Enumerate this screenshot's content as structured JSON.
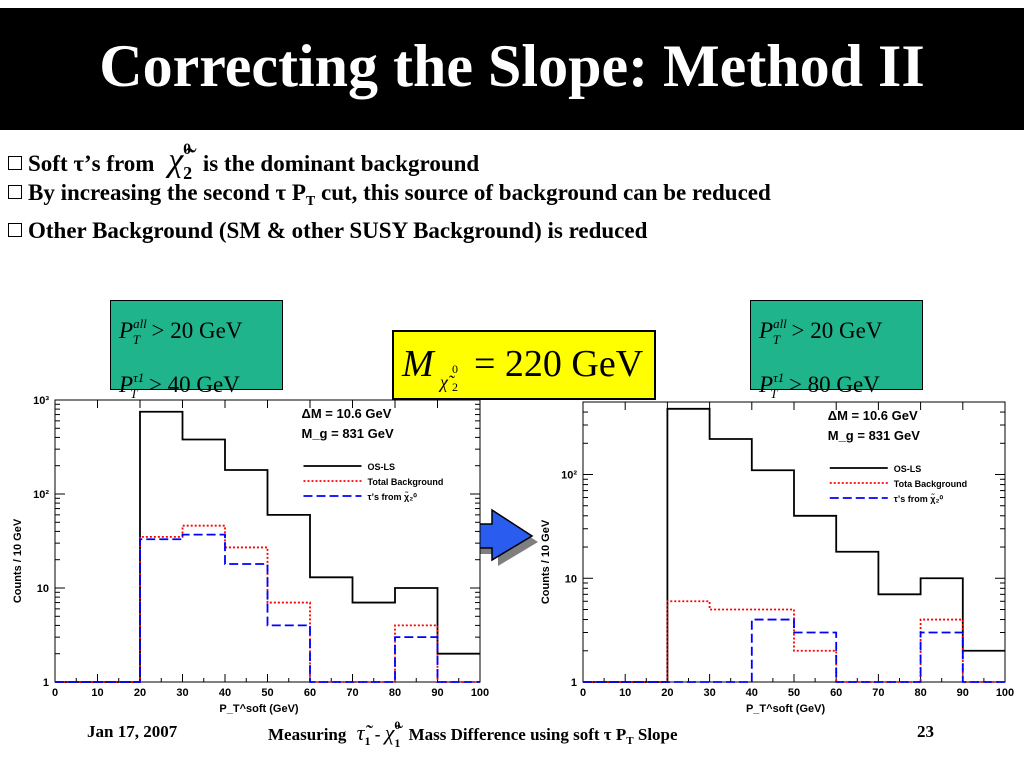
{
  "slide": {
    "title": "Correcting the Slope: Method II",
    "bullets": [
      {
        "pre": "Soft τ’s from",
        "sym": "χ̃",
        "sup": "0",
        "sub": "2",
        "post": "is the dominant background"
      },
      {
        "pre": "By increasing the second τ P",
        "sub": "T",
        "post": "cut, this source of background can be reduced"
      },
      {
        "text": "Other Background (SM & other SUSY Background) is reduced"
      }
    ],
    "cuts_left": {
      "line1_sup": "all",
      "line1_sub": "T",
      "line1_rest": "> 20 GeV",
      "line2_sup": "τ1",
      "line2_sub": "T",
      "line2_rest": "> 40 GeV"
    },
    "cuts_right": {
      "line1_sup": "all",
      "line1_sub": "T",
      "line1_rest": "> 20 GeV",
      "line2_sup": "τ1",
      "line2_sub": "T",
      "line2_rest": "> 80 GeV"
    },
    "mass_box": {
      "symbol": "M",
      "sub": "χ̃",
      "sub_sup": "0",
      "sub_sub": "2",
      "value": "= 220 GeV"
    },
    "footer": {
      "date": "Jan 17, 2007",
      "center_pre": "Measuring",
      "center_mid": "τ̃",
      "center_mid_sub": "1",
      "center_dash": "-",
      "center_chi": "χ̃",
      "center_chi_sup": "0",
      "center_chi_sub": "1",
      "center_post": "Mass Difference using soft τ P",
      "center_post_sub": "T",
      "center_end": "Slope",
      "page": "23"
    },
    "colors": {
      "title_bg": "#000000",
      "cut_box": "#20b48c",
      "mass_box": "#ffff00",
      "arrow": "#2a5cf0"
    }
  },
  "chart_data": [
    {
      "type": "line",
      "histogram": true,
      "y_scale": "log",
      "ylim": [
        1,
        1000
      ],
      "xlim": [
        0,
        100
      ],
      "bin_edges": [
        0,
        10,
        20,
        30,
        40,
        50,
        60,
        70,
        80,
        90,
        100
      ],
      "x_ticks": [
        "0",
        "10",
        "20",
        "30",
        "40",
        "50",
        "60",
        "70",
        "80",
        "90",
        "100"
      ],
      "y_ticks": [
        {
          "v": 1,
          "t": "1"
        },
        {
          "v": 10,
          "t": "10"
        },
        {
          "v": 100,
          "t": "10²"
        },
        {
          "v": 1000,
          "t": "10³"
        }
      ],
      "xlabel": "P_T^soft (GeV)",
      "ylabel": "Counts / 10 GeV",
      "annotations": [
        "ΔM = 10.6 GeV",
        "M_g = 831 GeV"
      ],
      "series": [
        {
          "name": "OS-LS",
          "color": "#000000",
          "dash": "solid",
          "values": [
            1,
            1,
            750,
            380,
            180,
            60,
            13,
            7,
            10,
            2
          ]
        },
        {
          "name": "Total Background",
          "color": "#ff0000",
          "dash": "dotted",
          "values": [
            1,
            1,
            35,
            46,
            27,
            7,
            1,
            1,
            4,
            1
          ]
        },
        {
          "name": "τ’s from χ̃₂⁰",
          "color": "#0000ff",
          "dash": "dashed",
          "values": [
            1,
            1,
            33,
            37,
            18,
            4,
            1,
            1,
            3,
            1
          ]
        }
      ]
    },
    {
      "type": "line",
      "histogram": true,
      "y_scale": "log",
      "ylim": [
        1,
        500
      ],
      "xlim": [
        0,
        100
      ],
      "bin_edges": [
        0,
        10,
        20,
        30,
        40,
        50,
        60,
        70,
        80,
        90,
        100
      ],
      "x_ticks": [
        "0",
        "10",
        "20",
        "30",
        "40",
        "50",
        "60",
        "70",
        "80",
        "90",
        "100"
      ],
      "y_ticks": [
        {
          "v": 1,
          "t": "1"
        },
        {
          "v": 10,
          "t": "10"
        },
        {
          "v": 100,
          "t": "10²"
        }
      ],
      "xlabel": "P_T^soft (GeV)",
      "ylabel": "Counts / 10 GeV",
      "annotations": [
        "ΔM = 10.6 GeV",
        "M_g = 831 GeV"
      ],
      "series": [
        {
          "name": "OS-LS",
          "color": "#000000",
          "dash": "solid",
          "values": [
            1,
            1,
            430,
            220,
            110,
            40,
            18,
            7,
            10,
            2
          ]
        },
        {
          "name": "Tota Background",
          "color": "#ff0000",
          "dash": "dotted",
          "values": [
            1,
            1,
            6,
            5,
            5,
            2,
            1,
            1,
            4,
            1
          ]
        },
        {
          "name": "τ’s from χ̃₂⁰",
          "color": "#0000ff",
          "dash": "dashed",
          "values": [
            1,
            1,
            1,
            1,
            4,
            3,
            1,
            1,
            3,
            1
          ]
        }
      ]
    }
  ]
}
